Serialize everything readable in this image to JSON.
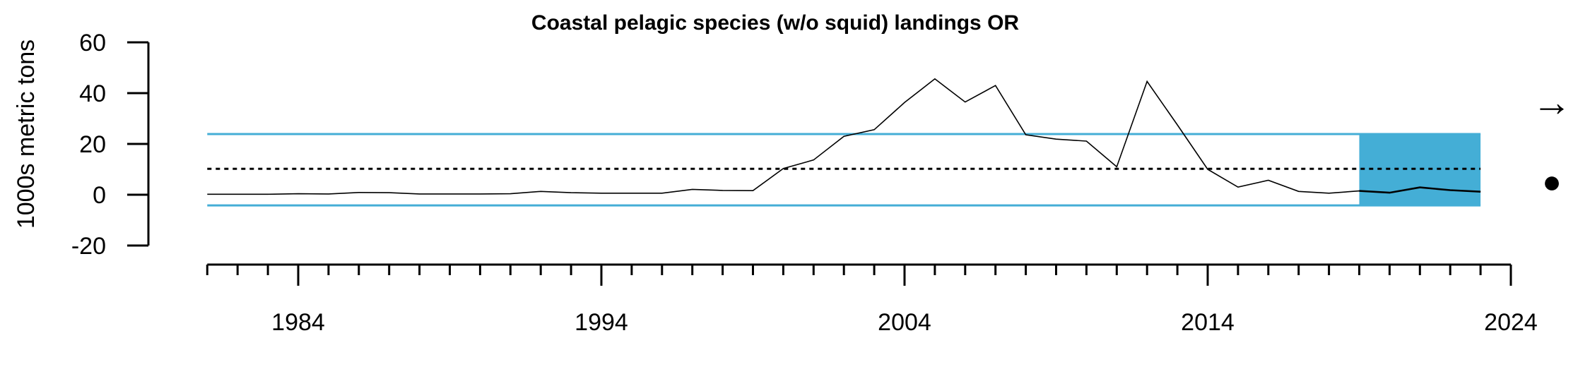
{
  "chart_data": {
    "type": "line",
    "title": "Coastal pelagic species (w/o squid) landings OR",
    "xlabel": "",
    "ylabel": "1000s metric tons",
    "xlim": [
      1980.5,
      2024
    ],
    "ylim": [
      -20,
      60
    ],
    "x_ticks": [
      1984,
      1994,
      2004,
      2014,
      2024
    ],
    "x_tick_labels": [
      "1984",
      "1994",
      "2004",
      "2014",
      "2024"
    ],
    "y_ticks": [
      -20,
      0,
      20,
      40,
      60
    ],
    "y_tick_labels": [
      "-20",
      "0",
      "20",
      "40",
      "60"
    ],
    "mean": 10.2,
    "upper_sd": 23.9,
    "lower_sd": -4.2,
    "shaded_period": [
      2019,
      2023
    ],
    "trend_symbol": "→",
    "status_symbol": "●",
    "colors": {
      "band": "#44aed6",
      "line": "#000000"
    },
    "series": [
      {
        "x": [
          1981,
          1982,
          1983,
          1984,
          1985,
          1986,
          1987,
          1988,
          1989,
          1990,
          1991,
          1992,
          1993,
          1994,
          1995,
          1996,
          1997,
          1998,
          1999,
          2000,
          2001,
          2002,
          2003,
          2004,
          2005,
          2006,
          2007,
          2008,
          2009,
          2010,
          2011,
          2012,
          2013,
          2014,
          2015,
          2016,
          2017,
          2018,
          2019,
          2020,
          2021,
          2022,
          2023
        ],
        "values": [
          0.2,
          0.2,
          0.2,
          0.4,
          0.3,
          0.9,
          0.8,
          0.3,
          0.3,
          0.3,
          0.4,
          1.3,
          0.8,
          0.6,
          0.6,
          0.6,
          2.1,
          1.7,
          1.6,
          10.3,
          13.7,
          23.0,
          25.6,
          36.3,
          45.6,
          36.5,
          43.0,
          23.6,
          21.9,
          21.1,
          11.0,
          44.6,
          27.5,
          10.0,
          3.0,
          5.7,
          1.3,
          0.6,
          1.5,
          0.8,
          2.9,
          1.8,
          1.2
        ]
      }
    ]
  }
}
